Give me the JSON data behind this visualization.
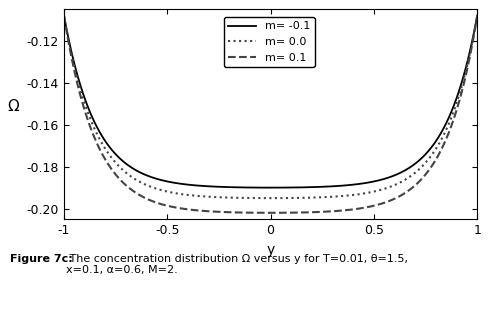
{
  "title": "",
  "xlabel": "y",
  "ylabel": "Ω",
  "xlim": [
    -1.0,
    1.0
  ],
  "ylim": [
    -0.205,
    -0.105
  ],
  "yticks": [
    -0.2,
    -0.18,
    -0.16,
    -0.14,
    -0.12
  ],
  "xticks": [
    -1,
    -0.5,
    0,
    0.5,
    1
  ],
  "xtick_labels": [
    "-1",
    "-0.5",
    "0",
    "0.5",
    "1"
  ],
  "caption_bold": "Figure 7c:",
  "caption_normal": " The concentration distribution Ω versus y for T=0.01, θ=1.5,\nx=0.1, α=0.6, M=2.",
  "curves": [
    {
      "m": -0.1,
      "label": "m= -0.1",
      "linestyle": "solid",
      "color": "#000000",
      "linewidth": 1.3
    },
    {
      "m": 0.0,
      "label": "m= 0.0",
      "linestyle": "dotted",
      "color": "#444444",
      "linewidth": 1.5
    },
    {
      "m": 0.1,
      "label": "m= 0.1",
      "linestyle": "dashed",
      "color": "#444444",
      "linewidth": 1.5
    }
  ],
  "background_color": "#ffffff",
  "figure_width": 4.92,
  "figure_height": 3.13,
  "dpi": 100,
  "k": 6.5,
  "min_vals": [
    -0.19,
    -0.195,
    -0.202
  ],
  "val_at_boundary": -0.108
}
